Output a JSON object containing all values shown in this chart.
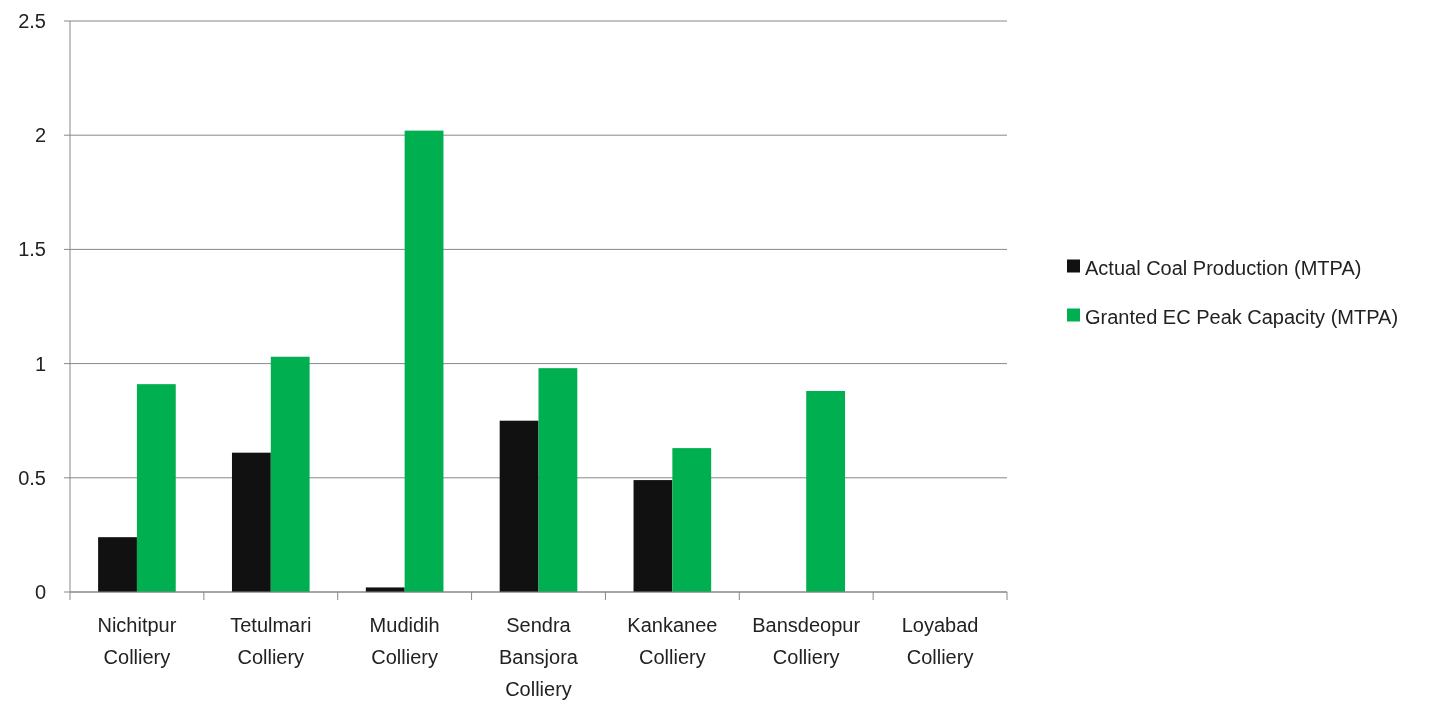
{
  "chart_data": {
    "type": "bar",
    "categories": [
      "Nichitpur Colliery",
      "Tetulmari Colliery",
      "Mudidih Colliery",
      "Sendra Bansjora Colliery",
      "Kankanee Colliery",
      "Bansdeopur Colliery",
      "Loyabad Colliery"
    ],
    "series": [
      {
        "name": "Actual Coal Production (MTPA)",
        "color": "#111111",
        "values": [
          0.24,
          0.61,
          0.02,
          0.75,
          0.49,
          null,
          null
        ]
      },
      {
        "name": "Granted EC Peak Capacity (MTPA)",
        "color": "#00b050",
        "values": [
          0.91,
          1.03,
          2.02,
          0.98,
          0.63,
          0.88,
          null
        ]
      }
    ],
    "ylim": [
      0,
      2.5
    ],
    "yticks": [
      0,
      0.5,
      1,
      1.5,
      2,
      2.5
    ],
    "grid": "y",
    "legend": "right"
  }
}
